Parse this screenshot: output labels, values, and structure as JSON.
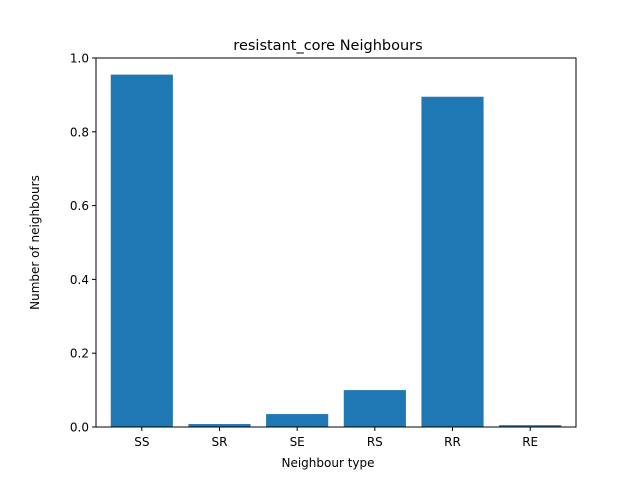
{
  "chart_data": {
    "type": "bar",
    "title": "resistant_core Neighbours",
    "xlabel": "Neighbour type",
    "ylabel": "Number of neighbours",
    "categories": [
      "SS",
      "SR",
      "SE",
      "RS",
      "RR",
      "RE"
    ],
    "values": [
      0.955,
      0.008,
      0.035,
      0.1,
      0.895,
      0.005
    ],
    "ylim": [
      0,
      1.0
    ],
    "yticks": [
      0.0,
      0.2,
      0.4,
      0.6,
      0.8,
      1.0
    ],
    "ytick_labels": [
      "0.0",
      "0.2",
      "0.4",
      "0.6",
      "0.8",
      "1.0"
    ],
    "bar_color": "#1f77b4",
    "grid": false,
    "legend": "none"
  }
}
